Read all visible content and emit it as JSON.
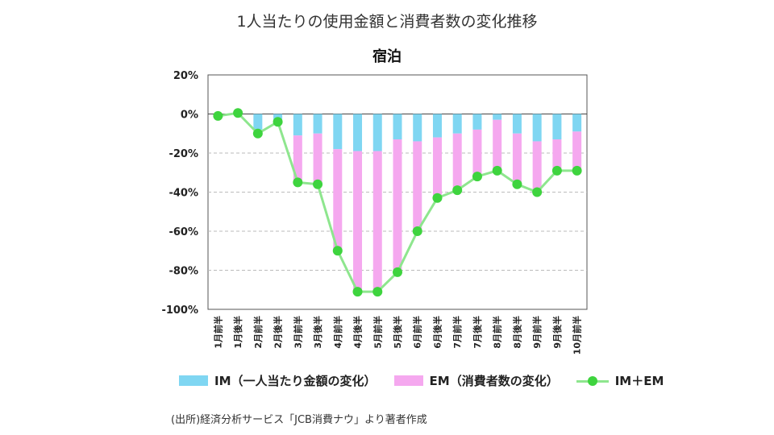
{
  "chart_data": {
    "type": "bar",
    "stacked": true,
    "title": "1人当たりの使用金額と消費者数の変化推移",
    "subtitle": "宿泊",
    "categories": [
      "1月前半",
      "1月後半",
      "2月前半",
      "2月後半",
      "3月前半",
      "3月後半",
      "4月前半",
      "4月後半",
      "5月前半",
      "5月後半",
      "6月前半",
      "6月後半",
      "7月前半",
      "7月後半",
      "8月前半",
      "8月後半",
      "9月前半",
      "9月後半",
      "10月前半"
    ],
    "ylim": [
      -100,
      20
    ],
    "yticks": [
      20,
      0,
      -20,
      -40,
      -60,
      -80,
      -100
    ],
    "ytick_labels": [
      "20%",
      "0%",
      "-20%",
      "-40%",
      "-60%",
      "-80%",
      "-100%"
    ],
    "grid": true,
    "series": [
      {
        "name": "IM（一人当たり金額の変化）",
        "kind": "bar",
        "color": "#7fd6f2",
        "values": [
          0,
          0,
          -8,
          -3,
          -11,
          -10,
          -18,
          -19,
          -19,
          -13,
          -14,
          -12,
          -10,
          -8,
          -3,
          -10,
          -14,
          -13,
          -9
        ]
      },
      {
        "name": "EM（消費者数の変化）",
        "kind": "bar",
        "color": "#f5a8ef",
        "values": [
          0,
          0,
          0,
          0,
          -23,
          -26,
          -51,
          -72,
          -72,
          -67,
          -45,
          -30,
          -29,
          -23,
          -25,
          -26,
          -26,
          -16,
          -19
        ]
      },
      {
        "name": "IM＋EM",
        "kind": "line",
        "color": "#3ed43e",
        "line_color": "#8ee68e",
        "values": [
          -1,
          0.5,
          -10,
          -4,
          -35,
          -36,
          -70,
          -91,
          -91,
          -81,
          -60,
          -43,
          -39,
          -32,
          -29,
          -36,
          -40,
          -29,
          -29
        ]
      }
    ],
    "legend": {
      "im": "IM（一人当たり金額の変化）",
      "em": "EM（消費者数の変化）",
      "sum": "IM＋EM"
    }
  },
  "source": "(出所)経済分析サービス「JCB消費ナウ」より著者作成"
}
